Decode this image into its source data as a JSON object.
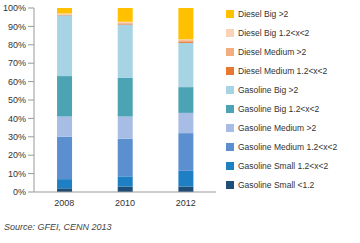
{
  "chart_data": {
    "type": "bar",
    "stacked": true,
    "grid": false,
    "legend": "right",
    "categories": [
      "2008",
      "2010",
      "2012"
    ],
    "series": [
      {
        "name": "Gasoline Small <1.2",
        "color": "#1f4e79",
        "values": [
          2,
          3,
          3
        ]
      },
      {
        "name": "Gasoline Small 1.2<x<2",
        "color": "#1f7fc4",
        "values": [
          5,
          5.5,
          8.5
        ]
      },
      {
        "name": "Gasoline Medium 1.2<x<2",
        "color": "#5b8fd0",
        "values": [
          23,
          20.5,
          20.5
        ]
      },
      {
        "name": "Gasoline Medium >2",
        "color": "#a8bde6",
        "values": [
          11,
          12,
          11
        ]
      },
      {
        "name": "Gasoline Big 1.2<x<2",
        "color": "#4ba3b3",
        "values": [
          22,
          21,
          14
        ]
      },
      {
        "name": "Gasoline Big >2",
        "color": "#a6d4e4",
        "values": [
          33,
          29,
          24
        ]
      },
      {
        "name": "Diesel Medium 1.2<x<2",
        "color": "#e8782f",
        "values": [
          0.3,
          0.5,
          0.5
        ]
      },
      {
        "name": "Diesel Medium >2",
        "color": "#f2ae80",
        "values": [
          0.2,
          0.5,
          1
        ]
      },
      {
        "name": "Diesel Big 1.2<x<2",
        "color": "#f9d2b8",
        "values": [
          0.5,
          0.5,
          0.5
        ]
      },
      {
        "name": "Diesel Big >2",
        "color": "#ffc000",
        "values": [
          3,
          7.5,
          17
        ]
      }
    ],
    "ylim": [
      0,
      100
    ],
    "yticks": [
      {
        "value": 0,
        "label": "0%"
      },
      {
        "value": 10,
        "label": "10%"
      },
      {
        "value": 20,
        "label": "20%"
      },
      {
        "value": 30,
        "label": "30%"
      },
      {
        "value": 40,
        "label": "40%"
      },
      {
        "value": 50,
        "label": "50%"
      },
      {
        "value": 60,
        "label": "60%"
      },
      {
        "value": 70,
        "label": "70%"
      },
      {
        "value": 80,
        "label": "80%"
      },
      {
        "value": 90,
        "label": "90%"
      },
      {
        "value": 100,
        "label": "100%"
      }
    ],
    "annotations": [
      "Source: GFEI, CENN 2013"
    ]
  }
}
